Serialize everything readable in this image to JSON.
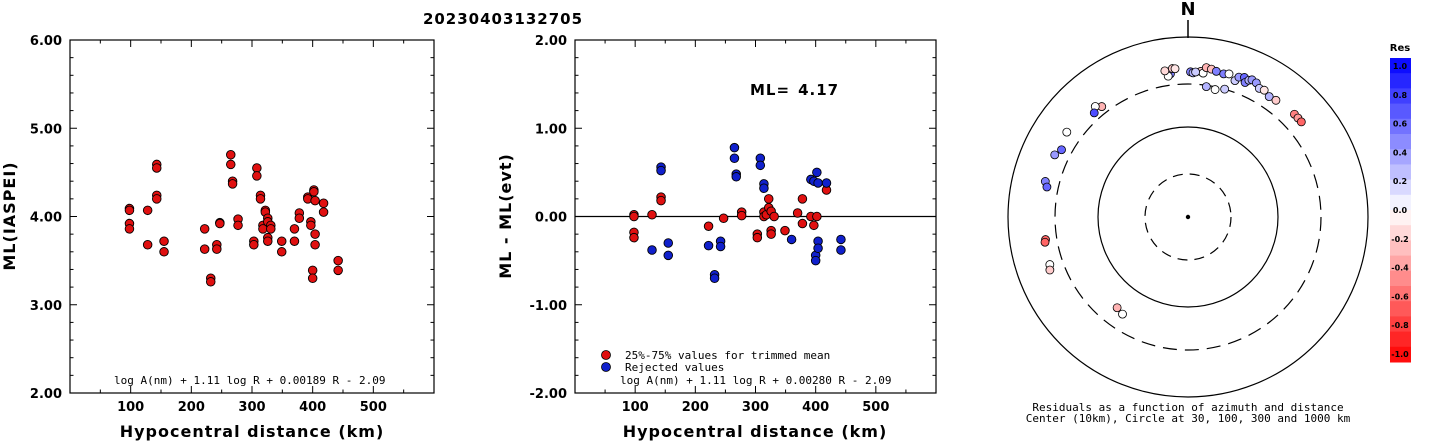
{
  "page_title": "20230403132705",
  "colors": {
    "accepted": "#e01010",
    "rejected": "#1020cc",
    "positive_res": "#0000ff",
    "negative_res": "#ff0000"
  },
  "chart_data": [
    {
      "type": "scatter",
      "title": "",
      "xlabel": "Hypocentral distance (km)",
      "ylabel": "ML(IASPEI)",
      "xlim": [
        0,
        600
      ],
      "ylim": [
        2.0,
        6.0
      ],
      "x_ticks": [
        "100",
        "200",
        "300",
        "400",
        "500"
      ],
      "y_ticks": [
        "2.00",
        "3.00",
        "4.00",
        "5.00",
        "6.00"
      ],
      "formula": "log A(nm) + 1.11 log R + 0.00189 R - 2.09",
      "series": [
        {
          "points": [
            [
              98,
              4.09
            ],
            [
              98,
              4.07
            ],
            [
              98,
              3.92
            ],
            [
              98,
              3.86
            ],
            [
              128,
              4.07
            ],
            [
              128,
              3.68
            ],
            [
              143,
              4.59
            ],
            [
              143,
              4.55
            ],
            [
              143,
              4.24
            ],
            [
              143,
              4.2
            ],
            [
              155,
              3.72
            ],
            [
              155,
              3.6
            ],
            [
              222,
              3.86
            ],
            [
              222,
              3.63
            ],
            [
              232,
              3.3
            ],
            [
              232,
              3.26
            ],
            [
              242,
              3.68
            ],
            [
              242,
              3.63
            ],
            [
              247,
              3.93
            ],
            [
              247,
              3.92
            ],
            [
              265,
              4.7
            ],
            [
              265,
              4.59
            ],
            [
              268,
              4.4
            ],
            [
              268,
              4.37
            ],
            [
              277,
              3.97
            ],
            [
              277,
              3.9
            ],
            [
              303,
              3.72
            ],
            [
              303,
              3.68
            ],
            [
              308,
              4.55
            ],
            [
              308,
              4.46
            ],
            [
              314,
              4.24
            ],
            [
              314,
              4.2
            ],
            [
              318,
              3.9
            ],
            [
              318,
              3.86
            ],
            [
              322,
              4.07
            ],
            [
              322,
              4.05
            ],
            [
              326,
              3.98
            ],
            [
              326,
              3.94
            ],
            [
              326,
              3.76
            ],
            [
              326,
              3.72
            ],
            [
              331,
              3.9
            ],
            [
              331,
              3.86
            ],
            [
              349,
              3.72
            ],
            [
              349,
              3.6
            ],
            [
              370,
              3.86
            ],
            [
              370,
              3.72
            ],
            [
              378,
              4.04
            ],
            [
              378,
              3.98
            ],
            [
              392,
              4.22
            ],
            [
              392,
              4.2
            ],
            [
              397,
              3.94
            ],
            [
              397,
              3.9
            ],
            [
              400,
              3.39
            ],
            [
              400,
              3.3
            ],
            [
              402,
              4.3
            ],
            [
              402,
              4.28
            ],
            [
              404,
              4.18
            ],
            [
              404,
              3.8
            ],
            [
              404,
              3.68
            ],
            [
              418,
              4.15
            ],
            [
              418,
              4.05
            ],
            [
              442,
              3.5
            ],
            [
              442,
              3.39
            ]
          ]
        }
      ]
    },
    {
      "type": "scatter",
      "title": "",
      "xlabel": "Hypocentral distance (km)",
      "ylabel": "ML - ML(evt)",
      "xlim": [
        0,
        600
      ],
      "ylim": [
        -2.0,
        2.0
      ],
      "x_ticks": [
        "100",
        "200",
        "300",
        "400",
        "500"
      ],
      "y_ticks": [
        "-2.00",
        "-1.00",
        "0.00",
        "1.00",
        "2.00"
      ],
      "reference_line": 0.0,
      "ml_label": "ML=",
      "ml_value": "4.17",
      "formula": "log A(nm) + 1.11 log R + 0.00280 R - 2.09",
      "legend": {
        "placement": "bottom-left",
        "entries": [
          "25%-75% values for trimmed mean",
          "Rejected values"
        ]
      },
      "series": [
        {
          "name": "25%-75% values for trimmed mean",
          "points": [
            [
              98,
              0.02
            ],
            [
              98,
              0.0
            ],
            [
              98,
              -0.18
            ],
            [
              98,
              -0.24
            ],
            [
              128,
              0.02
            ],
            [
              143,
              0.22
            ],
            [
              143,
              0.18
            ],
            [
              222,
              -0.11
            ],
            [
              247,
              -0.02
            ],
            [
              277,
              0.05
            ],
            [
              277,
              0.01
            ],
            [
              303,
              -0.2
            ],
            [
              303,
              -0.24
            ],
            [
              314,
              0.05
            ],
            [
              314,
              0.0
            ],
            [
              318,
              0.02
            ],
            [
              322,
              0.2
            ],
            [
              322,
              0.1
            ],
            [
              326,
              0.06
            ],
            [
              326,
              -0.16
            ],
            [
              326,
              -0.2
            ],
            [
              331,
              0.0
            ],
            [
              349,
              -0.16
            ],
            [
              370,
              0.04
            ],
            [
              378,
              0.2
            ],
            [
              378,
              -0.08
            ],
            [
              392,
              0.0
            ],
            [
              397,
              -0.1
            ],
            [
              402,
              0.0
            ],
            [
              418,
              0.3
            ]
          ]
        },
        {
          "name": "Rejected values",
          "points": [
            [
              128,
              -0.38
            ],
            [
              143,
              0.56
            ],
            [
              143,
              0.52
            ],
            [
              155,
              -0.3
            ],
            [
              155,
              -0.44
            ],
            [
              222,
              -0.33
            ],
            [
              232,
              -0.66
            ],
            [
              232,
              -0.7
            ],
            [
              242,
              -0.28
            ],
            [
              242,
              -0.34
            ],
            [
              265,
              0.78
            ],
            [
              265,
              0.66
            ],
            [
              268,
              0.48
            ],
            [
              268,
              0.45
            ],
            [
              308,
              0.66
            ],
            [
              308,
              0.58
            ],
            [
              314,
              0.37
            ],
            [
              314,
              0.32
            ],
            [
              360,
              -0.26
            ],
            [
              392,
              0.42
            ],
            [
              397,
              0.4
            ],
            [
              400,
              -0.44
            ],
            [
              400,
              -0.5
            ],
            [
              402,
              0.5
            ],
            [
              404,
              0.38
            ],
            [
              404,
              -0.28
            ],
            [
              404,
              -0.36
            ],
            [
              418,
              0.38
            ],
            [
              442,
              -0.26
            ],
            [
              442,
              -0.38
            ]
          ]
        }
      ]
    },
    {
      "type": "scatter",
      "subtype": "polar",
      "north_label": "N",
      "caption_line1": "Residuals as a function of azimuth and distance",
      "caption_line2": "Center (10km), Circle at 30, 100, 300 and 1000 km",
      "rings_km": [
        30,
        100,
        300,
        1000
      ],
      "colorbar": {
        "title": "Res",
        "ticks": [
          "1.0",
          "0.8",
          "0.6",
          "0.4",
          "0.2",
          "0.0",
          "-0.2",
          "-0.4",
          "-0.6",
          "-0.8",
          "-1.0"
        ],
        "range": [
          -1.0,
          1.0
        ]
      },
      "stations": [
        {
          "az": 5,
          "dist": 420,
          "res": -0.2
        },
        {
          "az": 6,
          "dist": 405,
          "res": 0.0
        },
        {
          "az": 7,
          "dist": 470,
          "res": -0.3
        },
        {
          "az": 9,
          "dist": 460,
          "res": -0.25
        },
        {
          "az": 11,
          "dist": 445,
          "res": 0.5
        },
        {
          "az": 14,
          "dist": 435,
          "res": 0.5
        },
        {
          "az": 16,
          "dist": 450,
          "res": 0.0
        },
        {
          "az": 19,
          "dist": 400,
          "res": 0.2
        },
        {
          "az": 20,
          "dist": 450,
          "res": 0.4
        },
        {
          "az": 22,
          "dist": 470,
          "res": 0.6
        },
        {
          "az": 23,
          "dist": 420,
          "res": 0.5
        },
        {
          "az": 24,
          "dist": 460,
          "res": 0.3
        },
        {
          "az": 25,
          "dist": 480,
          "res": 0.4
        },
        {
          "az": 27,
          "dist": 470,
          "res": 0.4
        },
        {
          "az": 29,
          "dist": 430,
          "res": 0.2
        },
        {
          "az": 31,
          "dist": 440,
          "res": -0.1
        },
        {
          "az": 34,
          "dist": 410,
          "res": 0.3
        },
        {
          "az": 37,
          "dist": 420,
          "res": -0.2
        },
        {
          "az": 46,
          "dist": 440,
          "res": -0.5
        },
        {
          "az": 48,
          "dist": 440,
          "res": -0.4
        },
        {
          "az": 50,
          "dist": 440,
          "res": -0.6
        },
        {
          "az": 353,
          "dist": 400,
          "res": 0.5
        },
        {
          "az": 352,
          "dist": 380,
          "res": 0.0
        },
        {
          "az": 351,
          "dist": 440,
          "res": -0.15
        },
        {
          "az": 354,
          "dist": 455,
          "res": -0.2
        },
        {
          "az": 355,
          "dist": 450,
          "res": -0.1
        },
        {
          "az": 1,
          "dist": 410,
          "res": 0.5
        },
        {
          "az": 2,
          "dist": 400,
          "res": 0.3
        },
        {
          "az": 3,
          "dist": 410,
          "res": 0.2
        },
        {
          "az": 8,
          "dist": 290,
          "res": 0.3
        },
        {
          "az": 12,
          "dist": 280,
          "res": 0.0
        },
        {
          "az": 16,
          "dist": 300,
          "res": 0.2
        },
        {
          "az": 322,
          "dist": 360,
          "res": -0.3
        },
        {
          "az": 320,
          "dist": 400,
          "res": 0.0
        },
        {
          "az": 318,
          "dist": 360,
          "res": 0.7
        },
        {
          "az": 305,
          "dist": 440,
          "res": 0.0
        },
        {
          "az": 298,
          "dist": 390,
          "res": 0.6
        },
        {
          "az": 295,
          "dist": 430,
          "res": 0.4
        },
        {
          "az": 284,
          "dist": 430,
          "res": 0.5
        },
        {
          "az": 282,
          "dist": 400,
          "res": 0.6
        },
        {
          "az": 261,
          "dist": 400,
          "res": -0.6
        },
        {
          "az": 260,
          "dist": 410,
          "res": -0.6
        },
        {
          "az": 251,
          "dist": 420,
          "res": 0.0
        },
        {
          "az": 249,
          "dist": 440,
          "res": -0.2
        },
        {
          "az": 218,
          "dist": 190,
          "res": -0.3
        },
        {
          "az": 214,
          "dist": 200,
          "res": 0.0
        }
      ]
    }
  ]
}
